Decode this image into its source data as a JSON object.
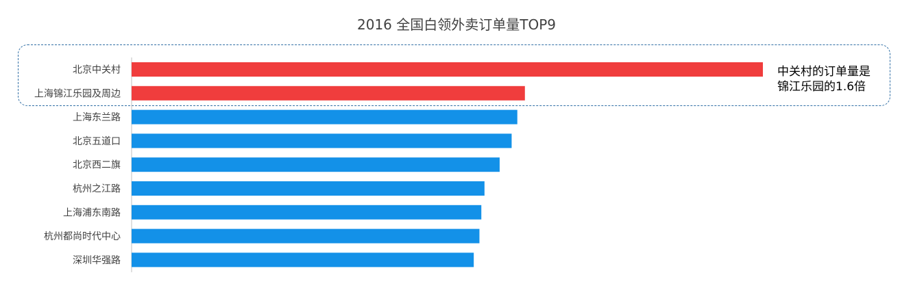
{
  "chart_data": {
    "type": "bar",
    "orientation": "horizontal",
    "title": "2016 全国白领外卖订单量TOP9",
    "categories": [
      "北京中关村",
      "上海锦江乐园及周边",
      "上海东兰路",
      "北京五道口",
      "北京西二旗",
      "杭州之江路",
      "上海浦东南路",
      "杭州都尚时代中心",
      "深圳华强路"
    ],
    "values": [
      100,
      62.3,
      61.1,
      60.2,
      58.3,
      55.9,
      55.4,
      55.1,
      54.2
    ],
    "value_axis_shown": false,
    "grid": false,
    "highlight_categories": [
      "北京中关村",
      "上海锦江乐园及周边"
    ],
    "annotation": [
      "中关村的订单量是",
      "锦江乐园的1.6倍"
    ]
  },
  "colors": {
    "highlight": "#f03d3d",
    "default": "#1391e8",
    "box_border": "#2e6da4"
  }
}
